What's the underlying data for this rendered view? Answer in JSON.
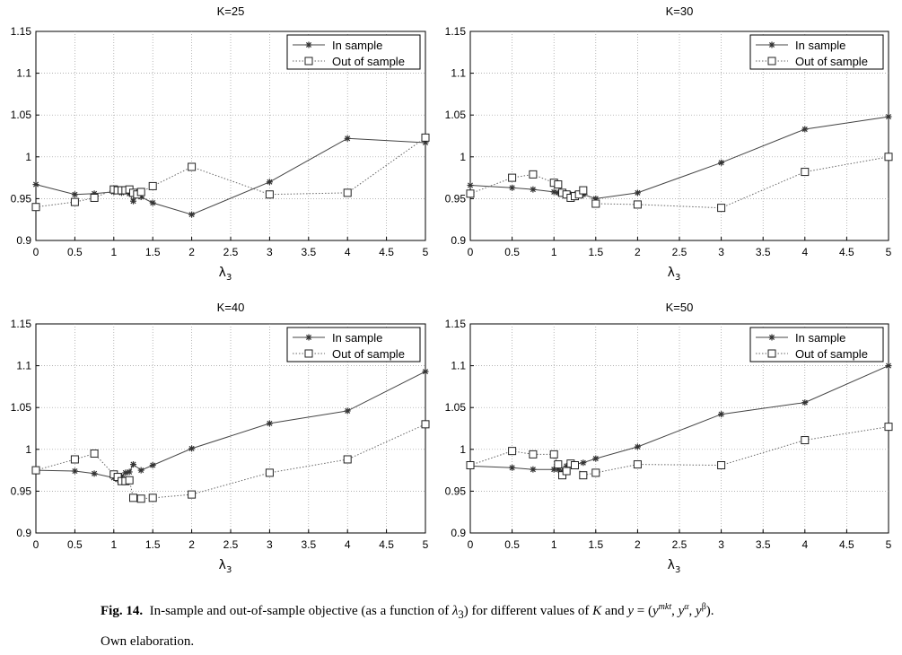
{
  "chart_data": [
    {
      "type": "line",
      "title": "K=25",
      "xlabel": "λ3",
      "ylabel": "",
      "xlim": [
        0,
        5
      ],
      "ylim": [
        0.9,
        1.15
      ],
      "xticks": [
        "0",
        "0.5",
        "1",
        "1.5",
        "2",
        "2.5",
        "3",
        "3.5",
        "4",
        "4.5",
        "5"
      ],
      "yticks": [
        "0.9",
        "0.95",
        "1",
        "1.05",
        "1.1",
        "1.15"
      ],
      "grid": true,
      "legend": "top-right",
      "series": [
        {
          "name": "In sample",
          "marker": "star",
          "line": "solid",
          "x": [
            0,
            0.5,
            0.75,
            1,
            1.05,
            1.1,
            1.15,
            1.2,
            1.25,
            1.3,
            1.35,
            1.5,
            2,
            3,
            4,
            5
          ],
          "y": [
            0.967,
            0.955,
            0.956,
            0.958,
            0.959,
            0.957,
            0.959,
            0.956,
            0.947,
            0.955,
            0.952,
            0.945,
            0.931,
            0.97,
            1.022,
            1.017
          ]
        },
        {
          "name": "Out of sample",
          "marker": "square",
          "line": "dotted",
          "x": [
            0,
            0.5,
            0.75,
            1,
            1.05,
            1.1,
            1.15,
            1.2,
            1.25,
            1.3,
            1.35,
            1.5,
            2,
            3,
            4,
            5
          ],
          "y": [
            0.94,
            0.946,
            0.951,
            0.961,
            0.96,
            0.96,
            0.96,
            0.961,
            0.957,
            0.955,
            0.958,
            0.965,
            0.988,
            0.955,
            0.957,
            1.023
          ]
        }
      ]
    },
    {
      "type": "line",
      "title": "K=30",
      "xlabel": "λ3",
      "ylabel": "",
      "xlim": [
        0,
        5
      ],
      "ylim": [
        0.9,
        1.15
      ],
      "xticks": [
        "0",
        "0.5",
        "1",
        "1.5",
        "2",
        "2.5",
        "3",
        "3.5",
        "4",
        "4.5",
        "5"
      ],
      "yticks": [
        "0.9",
        "0.95",
        "1",
        "1.05",
        "1.1",
        "1.15"
      ],
      "grid": true,
      "legend": "top-right",
      "series": [
        {
          "name": "In sample",
          "marker": "star",
          "line": "solid",
          "x": [
            0,
            0.5,
            0.75,
            1,
            1.05,
            1.1,
            1.15,
            1.2,
            1.25,
            1.3,
            1.35,
            1.5,
            2,
            3,
            4,
            5
          ],
          "y": [
            0.966,
            0.963,
            0.961,
            0.958,
            0.957,
            0.957,
            0.956,
            0.955,
            0.955,
            0.955,
            0.955,
            0.95,
            0.957,
            0.993,
            1.033,
            1.048
          ]
        },
        {
          "name": "Out of sample",
          "marker": "square",
          "line": "dotted",
          "x": [
            0,
            0.5,
            0.75,
            1,
            1.05,
            1.1,
            1.15,
            1.2,
            1.25,
            1.3,
            1.35,
            1.5,
            2,
            3,
            4,
            5
          ],
          "y": [
            0.956,
            0.975,
            0.979,
            0.969,
            0.967,
            0.957,
            0.955,
            0.951,
            0.953,
            0.955,
            0.96,
            0.944,
            0.943,
            0.939,
            0.982,
            1.0
          ]
        }
      ]
    },
    {
      "type": "line",
      "title": "K=40",
      "xlabel": "λ3",
      "ylabel": "",
      "xlim": [
        0,
        5
      ],
      "ylim": [
        0.9,
        1.15
      ],
      "xticks": [
        "0",
        "0.5",
        "1",
        "1.5",
        "2",
        "2.5",
        "3",
        "3.5",
        "4",
        "4.5",
        "5"
      ],
      "yticks": [
        "0.9",
        "0.95",
        "1",
        "1.05",
        "1.1",
        "1.15"
      ],
      "grid": true,
      "legend": "top-right",
      "series": [
        {
          "name": "In sample",
          "marker": "star",
          "line": "solid",
          "x": [
            0,
            0.5,
            0.75,
            1,
            1.05,
            1.1,
            1.15,
            1.2,
            1.25,
            1.35,
            1.5,
            2,
            3,
            4,
            5
          ],
          "y": [
            0.975,
            0.974,
            0.971,
            0.966,
            0.964,
            0.968,
            0.972,
            0.973,
            0.982,
            0.975,
            0.981,
            1.001,
            1.031,
            1.046,
            1.093
          ]
        },
        {
          "name": "Out of sample",
          "marker": "square",
          "line": "dotted",
          "x": [
            0,
            0.5,
            0.75,
            1,
            1.05,
            1.1,
            1.15,
            1.2,
            1.25,
            1.35,
            1.5,
            2,
            3,
            4,
            5
          ],
          "y": [
            0.975,
            0.988,
            0.995,
            0.97,
            0.967,
            0.962,
            0.962,
            0.963,
            0.942,
            0.941,
            0.942,
            0.946,
            0.972,
            0.988,
            1.03
          ]
        }
      ]
    },
    {
      "type": "line",
      "title": "K=50",
      "xlabel": "λ3",
      "ylabel": "",
      "xlim": [
        0,
        5
      ],
      "ylim": [
        0.9,
        1.15
      ],
      "xticks": [
        "0",
        "0.5",
        "1",
        "1.5",
        "2",
        "2.5",
        "3",
        "3.5",
        "4",
        "4.5",
        "5"
      ],
      "yticks": [
        "0.9",
        "0.95",
        "1",
        "1.05",
        "1.1",
        "1.15"
      ],
      "grid": true,
      "legend": "top-right",
      "series": [
        {
          "name": "In sample",
          "marker": "star",
          "line": "solid",
          "x": [
            0,
            0.5,
            0.75,
            1,
            1.05,
            1.1,
            1.15,
            1.2,
            1.25,
            1.35,
            1.5,
            2,
            3,
            4,
            5
          ],
          "y": [
            0.98,
            0.978,
            0.976,
            0.976,
            0.976,
            0.974,
            0.98,
            0.983,
            0.982,
            0.984,
            0.989,
            1.003,
            1.042,
            1.056,
            1.1
          ]
        },
        {
          "name": "Out of sample",
          "marker": "square",
          "line": "dotted",
          "x": [
            0,
            0.5,
            0.75,
            1,
            1.05,
            1.1,
            1.15,
            1.2,
            1.25,
            1.35,
            1.5,
            2,
            3,
            4,
            5
          ],
          "y": [
            0.981,
            0.998,
            0.994,
            0.994,
            0.982,
            0.969,
            0.974,
            0.983,
            0.981,
            0.969,
            0.972,
            0.982,
            0.981,
            1.011,
            1.027
          ]
        }
      ]
    }
  ],
  "caption": {
    "label": "Fig. 14.",
    "text_before_lambda": "In-sample and out-of-sample objective (as a function of ",
    "lambda": "λ",
    "lambda_sub": "3",
    "text_mid": ") for different values of ",
    "var_k": "K",
    "text_and": " and ",
    "var_y": "y",
    "eq_open": " = (",
    "y_mkt_base": "y",
    "y_mkt_sup": "mkt",
    "sep1": ", ",
    "y_alpha_base": "y",
    "y_alpha_sup": "α",
    "sep2": ", ",
    "y_beta_base": "y",
    "y_beta_sup": "β",
    "eq_close": ").",
    "note": "Own elaboration."
  }
}
